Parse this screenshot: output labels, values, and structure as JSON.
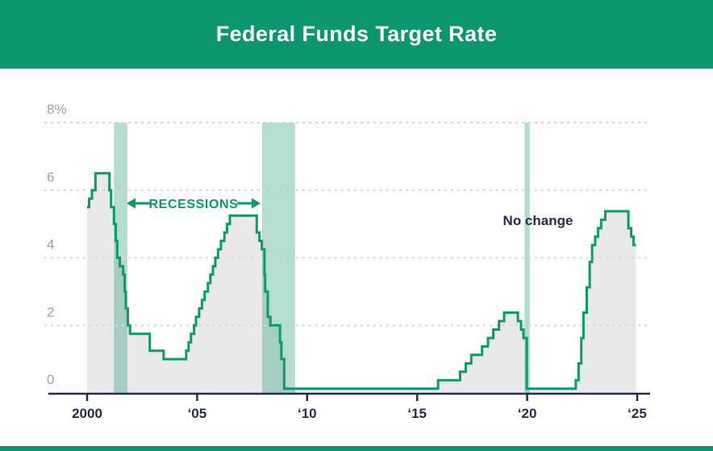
{
  "header": {
    "title": "Federal Funds Target Rate"
  },
  "annotations": {
    "recessions_label": "RECESSIONS",
    "no_change_label": "No change"
  },
  "colors": {
    "header_green": "#0b9670",
    "line_green": "#0c9a6a",
    "recession_band": "rgba(18,150,105,0.32)",
    "area_fill": "#e9e9ea",
    "gridline": "#d8d8d8",
    "axis_navy": "#272c4f",
    "y_label_gray": "#9aa3ae",
    "title_text": "#ffffff"
  },
  "chart_data": {
    "type": "line",
    "subtype": "step",
    "title": "Federal Funds Target Rate",
    "unit": "percent",
    "x_domain": [
      2000,
      2024.95
    ],
    "y_domain": [
      0,
      8
    ],
    "grid": "dashed-horizontal",
    "legend": "none",
    "x_ticks": [
      {
        "year": 2000,
        "label": "2000"
      },
      {
        "year": 2005,
        "label": "‘05"
      },
      {
        "year": 2010,
        "label": "‘10"
      },
      {
        "year": 2015,
        "label": "‘15"
      },
      {
        "year": 2020,
        "label": "‘20"
      },
      {
        "year": 2025,
        "label": "‘25"
      }
    ],
    "y_ticks": [
      {
        "value": 8,
        "label": "8%"
      },
      {
        "value": 6,
        "label": "6"
      },
      {
        "value": 4,
        "label": "4"
      },
      {
        "value": 2,
        "label": "2"
      },
      {
        "value": 0,
        "label": "0"
      }
    ],
    "recession_bands": [
      {
        "start": 2001.22,
        "end": 2001.83
      },
      {
        "start": 2007.95,
        "end": 2009.45
      },
      {
        "start": 2019.88,
        "end": 2020.12
      }
    ],
    "series": [
      {
        "name": "Federal Funds Target Rate",
        "type": "step",
        "points": [
          [
            2000.0,
            5.5
          ],
          [
            2000.09,
            5.75
          ],
          [
            2000.22,
            6.0
          ],
          [
            2000.38,
            6.5
          ],
          [
            2001.01,
            6.0
          ],
          [
            2001.09,
            5.5
          ],
          [
            2001.22,
            5.0
          ],
          [
            2001.3,
            4.5
          ],
          [
            2001.37,
            4.0
          ],
          [
            2001.49,
            3.75
          ],
          [
            2001.64,
            3.5
          ],
          [
            2001.71,
            3.0
          ],
          [
            2001.76,
            2.5
          ],
          [
            2001.85,
            2.0
          ],
          [
            2001.95,
            1.75
          ],
          [
            2002.85,
            1.25
          ],
          [
            2003.48,
            1.0
          ],
          [
            2004.5,
            1.25
          ],
          [
            2004.61,
            1.5
          ],
          [
            2004.72,
            1.75
          ],
          [
            2004.86,
            2.0
          ],
          [
            2004.95,
            2.25
          ],
          [
            2005.09,
            2.5
          ],
          [
            2005.22,
            2.75
          ],
          [
            2005.34,
            3.0
          ],
          [
            2005.49,
            3.25
          ],
          [
            2005.6,
            3.5
          ],
          [
            2005.72,
            3.75
          ],
          [
            2005.83,
            4.0
          ],
          [
            2005.95,
            4.25
          ],
          [
            2006.08,
            4.5
          ],
          [
            2006.24,
            4.75
          ],
          [
            2006.36,
            5.0
          ],
          [
            2006.49,
            5.25
          ],
          [
            2007.71,
            4.75
          ],
          [
            2007.83,
            4.5
          ],
          [
            2007.94,
            4.25
          ],
          [
            2008.06,
            3.5
          ],
          [
            2008.09,
            3.0
          ],
          [
            2008.21,
            2.25
          ],
          [
            2008.33,
            2.0
          ],
          [
            2008.77,
            1.5
          ],
          [
            2008.83,
            1.0
          ],
          [
            2008.96,
            0.125
          ],
          [
            2015.95,
            0.375
          ],
          [
            2016.95,
            0.625
          ],
          [
            2017.21,
            0.875
          ],
          [
            2017.46,
            1.125
          ],
          [
            2017.95,
            1.375
          ],
          [
            2018.22,
            1.625
          ],
          [
            2018.46,
            1.875
          ],
          [
            2018.72,
            2.125
          ],
          [
            2018.95,
            2.375
          ],
          [
            2019.58,
            2.125
          ],
          [
            2019.72,
            1.875
          ],
          [
            2019.83,
            1.625
          ],
          [
            2019.98,
            0.125
          ],
          [
            2022.21,
            0.375
          ],
          [
            2022.34,
            0.875
          ],
          [
            2022.46,
            1.625
          ],
          [
            2022.56,
            2.375
          ],
          [
            2022.71,
            3.125
          ],
          [
            2022.84,
            3.875
          ],
          [
            2022.95,
            4.375
          ],
          [
            2023.09,
            4.625
          ],
          [
            2023.22,
            4.875
          ],
          [
            2023.36,
            5.125
          ],
          [
            2023.55,
            5.375
          ],
          [
            2024.6,
            4.875
          ],
          [
            2024.73,
            4.625
          ],
          [
            2024.83,
            4.375
          ]
        ]
      }
    ],
    "final_value": 4.375
  }
}
